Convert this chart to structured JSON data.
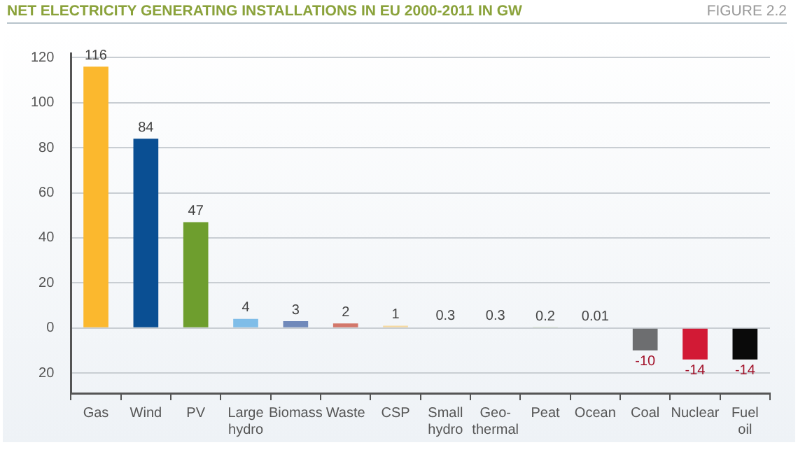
{
  "chart_data": {
    "type": "bar",
    "title": "NET ELECTRICITY GENERATING INSTALLATIONS IN EU 2000-2011 IN GW",
    "annotations": [
      "FIGURE 2.2"
    ],
    "categories": [
      "Gas",
      "Wind",
      "PV",
      "Large hydro",
      "Biomass",
      "Waste",
      "CSP",
      "Small hydro",
      "Geo-thermal",
      "Peat",
      "Ocean",
      "Coal",
      "Nuclear",
      "Fuel oil"
    ],
    "values": [
      116,
      84,
      47,
      4,
      3,
      2,
      1,
      0.3,
      0.3,
      0.2,
      0.01,
      -10,
      -14,
      -14
    ],
    "colors": [
      "#fbb82e",
      "#0a4f93",
      "#6e9e2e",
      "#7fbde8",
      "#7089ba",
      "#d3776a",
      "#f6d9a0",
      "#c8d0d8",
      "#c8d0d8",
      "#a9c774",
      "#d6dde4",
      "#6d6e70",
      "#d21a35",
      "#0a0a0a"
    ],
    "data_labels": true,
    "ylim": [
      -29,
      122
    ],
    "yticks": [
      {
        "value": -20,
        "label": "20"
      },
      0,
      20,
      40,
      60,
      80,
      100,
      120
    ],
    "grid": "y",
    "legend": false
  }
}
